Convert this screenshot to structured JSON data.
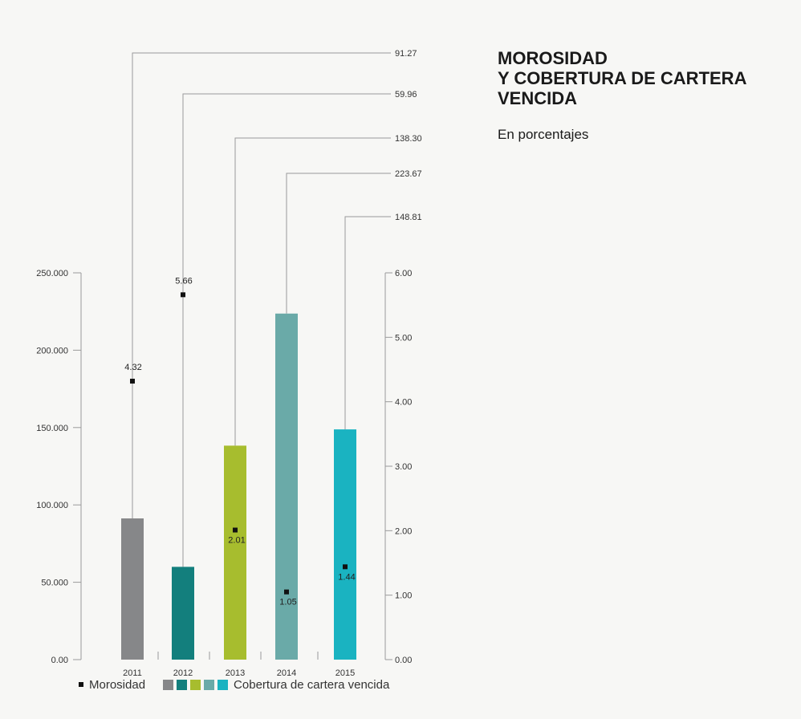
{
  "title_lines": [
    "MOROSIDAD",
    "Y COBERTURA DE CARTERA",
    "VENCIDA"
  ],
  "subtitle": "En porcentajes",
  "legend": {
    "morosidad_label": "Morosidad",
    "cobertura_label": "Cobertura de cartera vencida",
    "swatches": [
      {
        "color": "#868789"
      },
      {
        "color": "#137f7d"
      },
      {
        "color": "#a7bd2e"
      },
      {
        "color": "#6aaaa8"
      },
      {
        "color": "#1ab3c1"
      }
    ]
  },
  "chart_data": {
    "type": "bar",
    "categories": [
      "2011",
      "2012",
      "2013",
      "2014",
      "2015"
    ],
    "colors": [
      "#868789",
      "#137f7d",
      "#a7bd2e",
      "#6aaaa8",
      "#1ab3c1"
    ],
    "series": [
      {
        "name": "Cobertura de cartera vencida",
        "axis": "left",
        "values": [
          91.27,
          59.96,
          138.3,
          223.67,
          148.81
        ],
        "labels": [
          "91.27",
          "59.96",
          "138.30",
          "223.67",
          "148.81"
        ]
      },
      {
        "name": "Morosidad",
        "axis": "right",
        "values": [
          4.32,
          5.66,
          2.01,
          1.05,
          1.44
        ],
        "labels": [
          "4.32",
          "5.66",
          "2.01",
          "1.05",
          "1.44"
        ]
      }
    ],
    "left_axis": {
      "ticks": [
        0,
        50,
        100,
        150,
        200,
        250
      ],
      "tick_labels": [
        "0.00",
        "50.000",
        "100.000",
        "150.000",
        "200.000",
        "250.000"
      ],
      "ylim": [
        0,
        250
      ]
    },
    "right_axis": {
      "ticks": [
        0,
        1,
        2,
        3,
        4,
        5,
        6
      ],
      "tick_labels": [
        "0.00",
        "1.00",
        "2.00",
        "3.00",
        "4.00",
        "5.00",
        "6.00"
      ],
      "ylim": [
        0,
        6
      ]
    }
  }
}
